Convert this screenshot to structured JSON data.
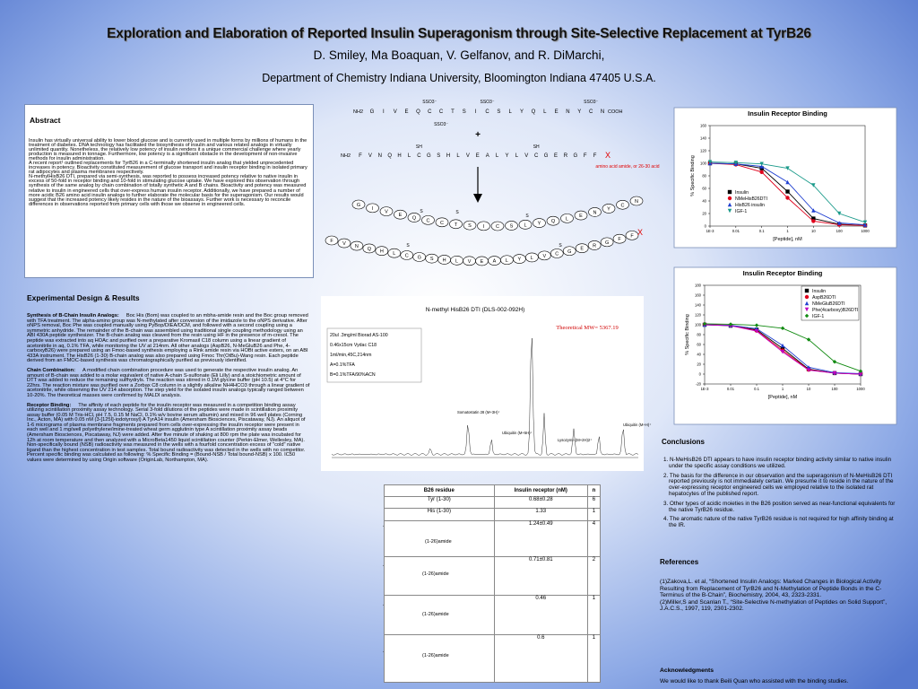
{
  "header": {
    "title": "Exploration and Elaboration of Reported Insulin Superagonism through Site-Selective Replacement at TyrB26",
    "authors": "D. Smiley,  Ma Boaquan, V. Gelfanov, and R. DiMarchi,",
    "affiliation": "Department of Chemistry Indiana University, Bloomington Indiana 47405 U.S.A."
  },
  "abstract": {
    "heading": "Abstract",
    "paragraphs": [
      "Insulin has virtually universal ability to lower blood glucose and is currently used in multiple forms by millions of humans in the treatment of diabetes. DNA technology has facilitated the biosynthesis of insulin and various related analogs in virtually unlimited quantity. Nonetheless, the relatively low potency of insulin renders it a unique commercial challenge where yearly production is measured in tonnage. Furthermore, low potency is a significant obstacle in the development of non-invasive methods for insulin administration.",
      "A recent report¹ outlined replacements for TyrB26 in a C-terminally shortened insulin analog that yielded unprecedented increases in potency. Bioactivity constituted measurement of glucose transport and insulin receptor binding in isolated primary rat adipocytes and plasma membranes respectively.",
      "N-methylHisB26 DTI, prepared via semi-synthesis, was reported to possess increased potency relative to native insulin in excess of 50-fold in receptor binding and 10-fold in stimulating glucose uptake. We have explored this observation through synthesis of the same analog by chain combination of totally synthetic A and B chains. Bioactivity and potency was measured relative to insulin in engineered cells that over-express human insulin receptor. Additionally, we have prepared a number of more acidic B26 amino acid insulin analogs to further elaborate the molecular basis for the superagonism. Our results would suggest that the increased potency likely resides in the nature of the bioassays. Further work is necessary to reconcile differences in observations reported from primary cells with those we observe in engineered cells."
    ]
  },
  "experimental": {
    "heading": "Experimental Design & Results",
    "sections": [
      {
        "lead": "Synthesis of  B-Chain Insulin Analogs:",
        "text": "Boc His (Bom) was coupled to an mbha-amide resin and the Boc group removed with TFA treatment. The alpha-amino group was N-methylated after conversion of the imidazole to the oNPS derivative. After oNPS removal, Boc Phe was coupled manually using PyBop/DIEA/DCM, and followed with a second coupling using a symmetric anhydride. The remainder of the B-chain was assembled using traditional single coupling methodology using an ABI 430A peptide synthesizer. The B-chain analog was cleaved from the resin using HF in the presence of m-cresol. The peptide was extracted into aq HOAc and purified over a preparative Kromasil C18 column using a linear gradient of acetonitrile in aq, 0.1% TFA, while monitoring the UV at 214nm. All other analogs (AspB26, N-MeGluB26 and Phe, 4-carboxyB26) were prepared using an Fmoc-based synthesis employing a Rink amide resin via HOBt active esters, on an ABI 433A instrument. The HisB26 (1-30) B-chain analog was also prepared using Fmoc Thr(OtBu)-Wang resin. Each peptide derived from an FMOC-based synthesis was chromatographically purified as previously identified."
      },
      {
        "lead": "Chain Combination:",
        "text": "A modified chain combination procedure was used to generate the respective insulin analog. An amount of B-chain was added to a molar equivalent of native A-chain S-sulfonate (Eli Lilly) and a stoichiometric amount of DTT was added to reduce the remaining sulfhydryls. The reaction was stirred in 0.1M glycine buffer (pH 10.5) at 4°C for 22hrs. The reaction mixture was purified over a Zorbax C8 column in a slightly alkaline NH4HCO3 through a linear gradient of acetonitrile, while observing the UV 214 absorption. The step yield for the isolated insulin analogs typically ranged between 10-20%. The theoretical masses were confirmed by MALDI analysis."
      },
      {
        "lead": "Receptor Binding:",
        "text": "The affinity of each peptide for the insulin receptor was measured in a competition binding assay utilizing scintillation proximity assay technology. Serial 3-fold dilutions of the peptides were made in scintillation proximity assay buffer (0.05 M Tris-HCl, pH 7.5, 0.15 M NaCl, 0.1% w/v bovine serum albumin) and mixed in 96 well plates (Corning Inc., Acton, MA) with 0.05 nM (3-[125I]-iodotyrosyl) A TyrA14 insulin (Amersham Biosciences, Piscataway, NJ). An aliquot of 1-6 micrograms of plasma membrane fragments prepared from cells over-expressing the insulin receptor were present in each well and 1 mg/well polyethylene/imine-treated wheat germ agglutinin type A scintillation proximity assay beads (Amersham Biosciences, Piscataway, NJ) were added. After five minute of shaking at 800 rpm the plate was incubated for 12h at room temperature and then analyzed with a MicroBeta1450 liquid scintillation counter (Perkin-Elmer, Wellesley, MA). Non-specifically bound (NSB) radioactivity was measured in the wells with a fourfold concentration excess of \"cold\" native ligand than the highest concentration in test samples. Total bound radioactivity was detected in the wells with no competitor. Percent specific binding was calculated as following: % Specific Binding = (Bound-NSB / Total bound-NSB) x 100. IC50 values were determined by using Origin software (OriginLab, Northampton, MA)."
      }
    ]
  },
  "diagram": {
    "a_chain": [
      "G",
      "I",
      "V",
      "E",
      "Q",
      "C",
      "C",
      "T",
      "S",
      "I",
      "C",
      "S",
      "L",
      "Y",
      "Q",
      "L",
      "E",
      "N",
      "Y",
      "C",
      "N"
    ],
    "b_chain": [
      "F",
      "V",
      "N",
      "Q",
      "H",
      "L",
      "C",
      "G",
      "S",
      "H",
      "L",
      "V",
      "E",
      "A",
      "L",
      "Y",
      "L",
      "V",
      "C",
      "G",
      "E",
      "R",
      "G",
      "F",
      "F"
    ],
    "nh2": "NH2",
    "cooh": "COOH",
    "sulfonate": "SSO3⁻",
    "thiol": "SH",
    "disulfide": "S",
    "plus": "+",
    "end": "X",
    "end_note": "amino acid amide, or 26-30 acid"
  },
  "hplc": {
    "title": "N-methyl HisB26 DTI  (DLS-002-092H)",
    "conditions": [
      "20ul .3mg/ml Biorad AS-100",
      "0.46x15cm Vydac C18",
      "1ml/min,45C,214nm",
      "A=0.1%TFA",
      "B=0.1%TFA/90%ACN"
    ],
    "mw": "Theoretical MW= 5367.19",
    "peaks": [
      "Somatostatin 28 (M+3H)⁺",
      "Ubiquitin (M+5H)⁺",
      "Lysozyme (M+2H)2⁺",
      "Ubiquitin (M+H)⁺"
    ]
  },
  "table": {
    "header": [
      "B26 residue",
      "Insulin receptor (nM)",
      "n"
    ],
    "rows": [
      [
        "Tyr (1-30)",
        "0.68±0.28",
        "6"
      ],
      [
        "His (1-30)",
        "1.33",
        "1"
      ],
      [
        "(1-26)amide",
        "1.24±0.49",
        "4"
      ],
      [
        "(1-26)amide",
        "0.71±0.81",
        "2"
      ],
      [
        "(1-26)amide",
        "0.46",
        "1"
      ],
      [
        "(1-26)amide",
        "0.6",
        "1"
      ]
    ]
  },
  "charts": [
    {
      "type": "line",
      "title": "Insulin Receptor Binding",
      "x_label": "[Peptide], nM",
      "y_label": "% Specific Binding",
      "xscale": "log",
      "xlim": [
        0.001,
        1000
      ],
      "xticks": [
        {
          "value": 0.001,
          "label": "1E-3"
        },
        0.01,
        0.1,
        1,
        10,
        100,
        1000
      ],
      "ylim": [
        0,
        160
      ],
      "yticks": [
        0,
        20,
        40,
        60,
        80,
        100,
        120,
        140,
        160
      ],
      "legend": "lower left",
      "x": [
        0.001,
        0.01,
        0.1,
        1,
        10,
        100,
        1000
      ],
      "series": [
        {
          "name": "Insulin",
          "color": "#000000",
          "marker": "square",
          "values": [
            100,
            99,
            92,
            55,
            12,
            3,
            1
          ]
        },
        {
          "name": "NMeHisB26DTI",
          "color": "#e0001b",
          "marker": "circle",
          "values": [
            100,
            98,
            86,
            45,
            8,
            2,
            1
          ]
        },
        {
          "name": "HisB26 insulin",
          "color": "#1f3fd0",
          "marker": "triangle",
          "values": [
            100,
            99,
            95,
            70,
            25,
            5,
            2
          ]
        },
        {
          "name": "IGF-1",
          "color": "#1a9a8a",
          "marker": "inverted-triangle",
          "values": [
            102,
            101,
            99,
            92,
            65,
            20,
            6
          ]
        }
      ]
    },
    {
      "type": "line",
      "title": "Insulin Receptor Binding",
      "x_label": "[Peptide], nM",
      "y_label": "% Specific Binding",
      "xscale": "log",
      "xlim": [
        0.001,
        1000
      ],
      "xticks": [
        {
          "value": 0.001,
          "label": "1E-3"
        },
        0.01,
        0.1,
        1,
        10,
        100,
        1000
      ],
      "ylim": [
        -20,
        180
      ],
      "yticks": [
        -20,
        0,
        20,
        40,
        60,
        80,
        100,
        120,
        140,
        160,
        180
      ],
      "legend": "upper right",
      "x": [
        0.001,
        0.01,
        0.1,
        1,
        10,
        100,
        1000
      ],
      "series": [
        {
          "name": "Insulin",
          "color": "#000000",
          "marker": "square",
          "values": [
            100,
            98,
            90,
            52,
            10,
            2,
            0
          ]
        },
        {
          "name": "AspB26DTI",
          "color": "#e0001b",
          "marker": "circle",
          "values": [
            101,
            99,
            88,
            48,
            9,
            2,
            0
          ]
        },
        {
          "name": "NMeGluB26DTI",
          "color": "#1f3fd0",
          "marker": "triangle",
          "values": [
            100,
            99,
            92,
            58,
            14,
            3,
            1
          ]
        },
        {
          "name": "Phe(4carboxy)B26DTI",
          "color": "#c000c0",
          "marker": "inverted-triangle",
          "values": [
            100,
            98,
            87,
            45,
            8,
            2,
            0
          ]
        },
        {
          "name": "IGF-1",
          "color": "#118a11",
          "marker": "diamond",
          "values": [
            102,
            101,
            99,
            93,
            70,
            25,
            6
          ]
        }
      ]
    }
  ],
  "conclusions": {
    "heading": "Conclusions",
    "items": [
      "1.  N-MeHisB26 DTI appears to have insulin receptor binding activity similar to native insulin under the specific assay conditions we utilized.",
      "2. The basis for the difference in our observation and the superagonism of N-MeHisB26 DTI reported previously is not immediately certain. We presume it to reside in the nature of the over-expressing receptor engineered cells we employed relative to the isolated rat hepatocytes of the published report.",
      "3. Other types of acidic moieties in the B26 position served as near-functional equivalents for the native TyrB26 residue.",
      "4. The aromatic nature of the native TyrB26 residue is not required for high affinity binding at the IR."
    ]
  },
  "references": {
    "heading": "References",
    "items": [
      "(1)Zakova,L. et al, “Shortened Insulin Analogs: Marked Changes in Biological Activity Resulting from Replacement of TyrB26 and N-Methylation of Peptide Bonds in the C-Terminus of the B-Chain”, Biochemistry, 2004, 43, 2323-2331.",
      "(2)Miller,S and Scanlan T., “Site-Selective N-methylation of Peptides on Solid Support”, J.A.C.S., 1997, 119, 2301-2302."
    ]
  },
  "acknowledgments": {
    "heading": "Acknowledgments",
    "text": "We would like to thank Beili Quan who assisted with the binding studies."
  }
}
